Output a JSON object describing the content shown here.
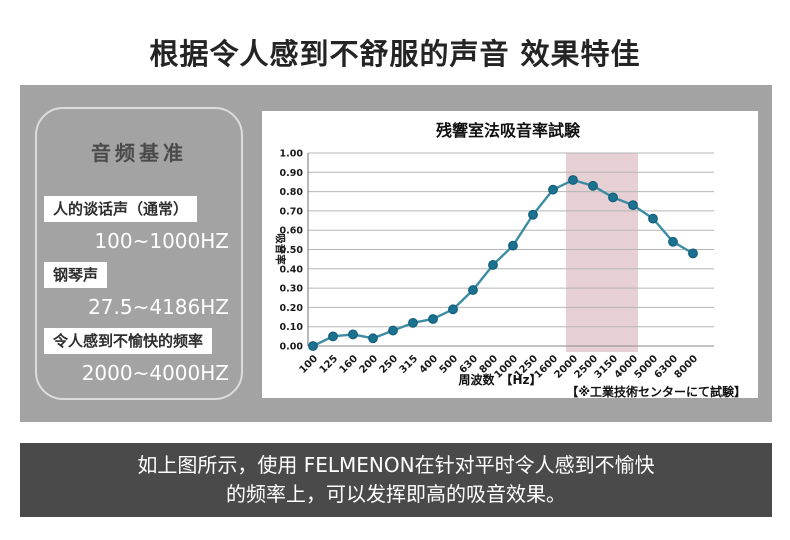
{
  "page": {
    "title": "根据令人感到不舒服的声音 效果特佳"
  },
  "sidebar": {
    "title": "音频基准",
    "items": [
      {
        "label": "人的谈话声（通常）",
        "range": "100~1000HZ"
      },
      {
        "label": "钢琴声",
        "range": "27.5~4186HZ"
      },
      {
        "label": "令人感到不愉快的频率",
        "range": "2000~4000HZ"
      }
    ]
  },
  "chart_data": {
    "type": "line",
    "title": "残響室法吸音率試験",
    "ylabel": "吸音率",
    "xlabel": "周波数　【Hz】",
    "note": "【※工業技術センターにて試験】",
    "categories": [
      "100",
      "125",
      "160",
      "200",
      "250",
      "315",
      "400",
      "500",
      "630",
      "800",
      "1000",
      "1250",
      "1600",
      "2000",
      "2500",
      "3150",
      "4000",
      "5000",
      "6300",
      "8000"
    ],
    "values": [
      0.0,
      0.05,
      0.06,
      0.04,
      0.08,
      0.12,
      0.14,
      0.19,
      0.29,
      0.42,
      0.52,
      0.68,
      0.81,
      0.86,
      0.83,
      0.77,
      0.73,
      0.66,
      0.54,
      0.48
    ],
    "ylim": [
      0,
      1.0
    ],
    "ytick_step": 0.1,
    "grid": true,
    "legend": "none",
    "highlight_band": {
      "from": "2000",
      "to": "4000",
      "color": "#e7d0d4"
    },
    "line_color": "#3d8ca4",
    "marker_color": "#1b7190"
  },
  "footer": {
    "line1": "如上图所示，使用 FELMENON在针对平时令人感到不愉快",
    "line2": "的频率上，可以发挥即高的吸音效果。"
  },
  "colors": {
    "band_bg": "#a3a3a3",
    "panel_bg": "#ffffff",
    "footer_bg": "#4a4a4a",
    "grid": "#b5b5b5",
    "axis": "#8a8a8a",
    "title_text": "#242424",
    "sidebar_value_text": "#ffffff"
  }
}
